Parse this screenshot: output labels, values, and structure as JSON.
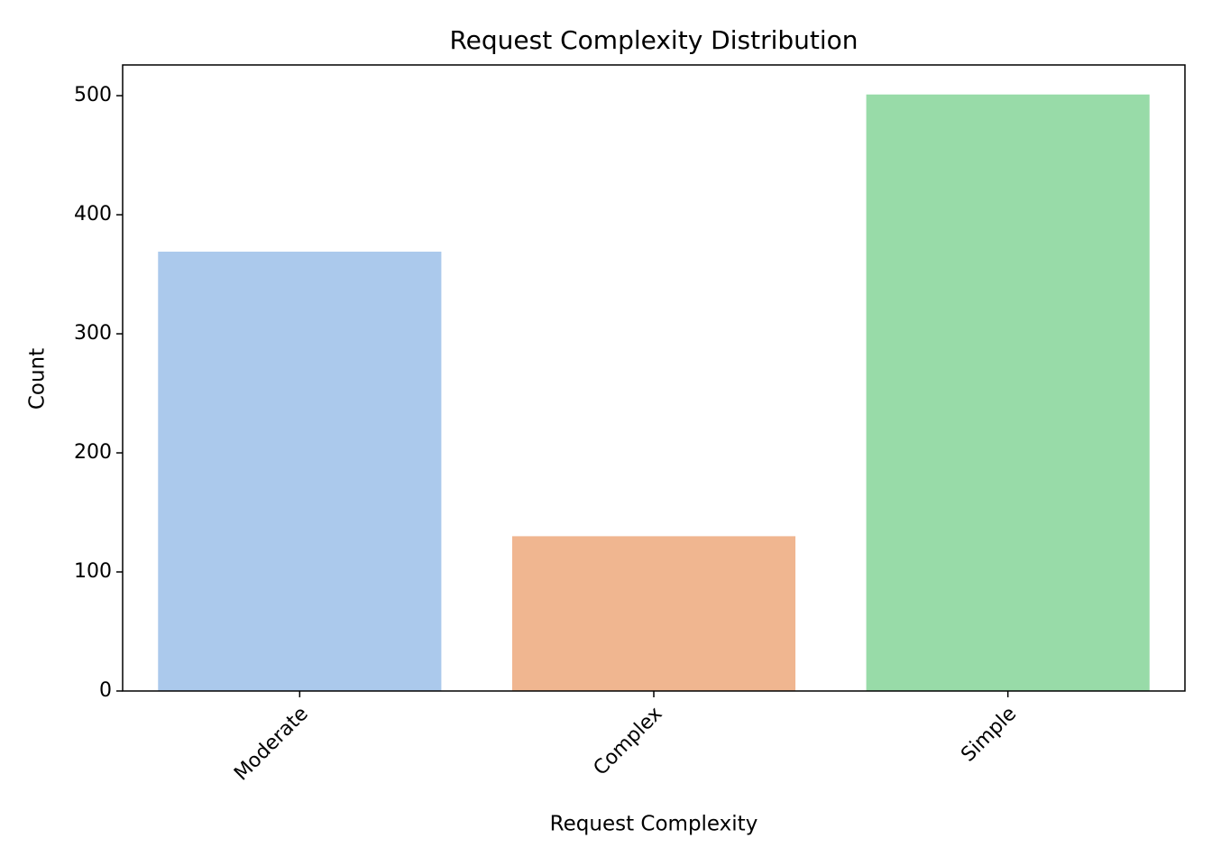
{
  "chart_data": {
    "type": "bar",
    "title": "Request Complexity Distribution",
    "x_label": "Request Complexity",
    "y_label": "Count",
    "categories": [
      "Moderate",
      "Complex",
      "Simple"
    ],
    "values": [
      369,
      130,
      501
    ],
    "colors": [
      "#abc9ec",
      "#f0b690",
      "#98dba8"
    ],
    "ylim": [
      0,
      525.8
    ],
    "yticks": [
      0,
      100,
      200,
      300,
      400,
      500
    ],
    "grid": false
  }
}
